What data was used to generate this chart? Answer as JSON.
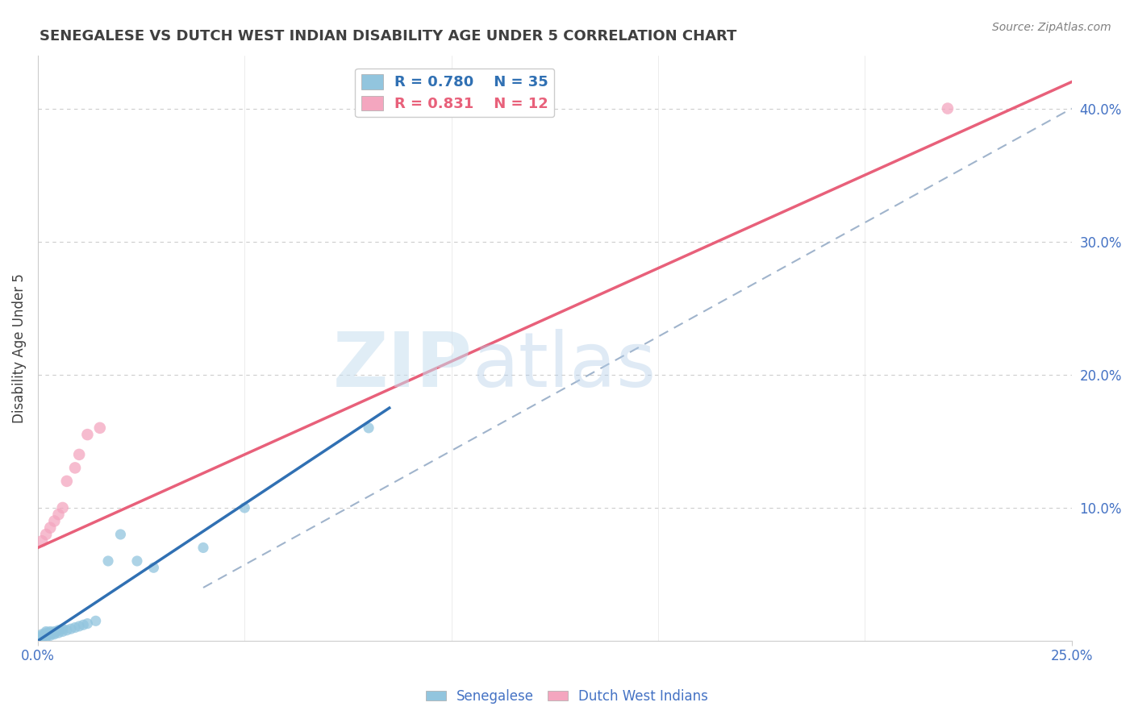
{
  "title": "SENEGALESE VS DUTCH WEST INDIAN DISABILITY AGE UNDER 5 CORRELATION CHART",
  "source": "Source: ZipAtlas.com",
  "xlim": [
    0.0,
    0.25
  ],
  "ylim": [
    0.0,
    0.44
  ],
  "ylabel_ticks": [
    0.0,
    0.1,
    0.2,
    0.3,
    0.4
  ],
  "ylabel_labels": [
    "",
    "10.0%",
    "20.0%",
    "30.0%",
    "40.0%"
  ],
  "senegalese_x": [
    0.001,
    0.001,
    0.001,
    0.001,
    0.001,
    0.002,
    0.002,
    0.002,
    0.002,
    0.002,
    0.003,
    0.003,
    0.003,
    0.003,
    0.004,
    0.004,
    0.004,
    0.005,
    0.005,
    0.006,
    0.006,
    0.007,
    0.008,
    0.009,
    0.01,
    0.011,
    0.012,
    0.014,
    0.017,
    0.02,
    0.024,
    0.028,
    0.04,
    0.05,
    0.08
  ],
  "senegalese_y": [
    0.002,
    0.003,
    0.003,
    0.004,
    0.005,
    0.003,
    0.004,
    0.005,
    0.006,
    0.007,
    0.004,
    0.005,
    0.006,
    0.007,
    0.005,
    0.006,
    0.007,
    0.006,
    0.008,
    0.007,
    0.009,
    0.008,
    0.009,
    0.01,
    0.011,
    0.012,
    0.013,
    0.015,
    0.06,
    0.08,
    0.06,
    0.055,
    0.07,
    0.1,
    0.16
  ],
  "dutch_x": [
    0.001,
    0.002,
    0.003,
    0.004,
    0.005,
    0.006,
    0.007,
    0.009,
    0.01,
    0.012,
    0.015,
    0.22
  ],
  "dutch_y": [
    0.075,
    0.08,
    0.085,
    0.09,
    0.095,
    0.1,
    0.12,
    0.13,
    0.14,
    0.155,
    0.16,
    0.4
  ],
  "blue_color": "#92c5de",
  "pink_color": "#f4a6bf",
  "blue_line_color": "#3070b3",
  "pink_line_color": "#e8607a",
  "blue_line_x": [
    0.0,
    0.085
  ],
  "blue_line_y": [
    0.0,
    0.175
  ],
  "pink_line_x": [
    0.0,
    0.25
  ],
  "pink_line_y": [
    0.07,
    0.42
  ],
  "ref_line_x": [
    0.04,
    0.25
  ],
  "ref_line_y": [
    0.04,
    0.4
  ],
  "r_blue": 0.78,
  "n_blue": 35,
  "r_pink": 0.831,
  "n_pink": 12,
  "watermark_zip": "ZIP",
  "watermark_atlas": "atlas",
  "background_color": "#ffffff",
  "grid_color": "#cccccc",
  "grid_dash": [
    4,
    4
  ],
  "tick_color": "#4472c4",
  "title_color": "#404040",
  "source_color": "#808080"
}
